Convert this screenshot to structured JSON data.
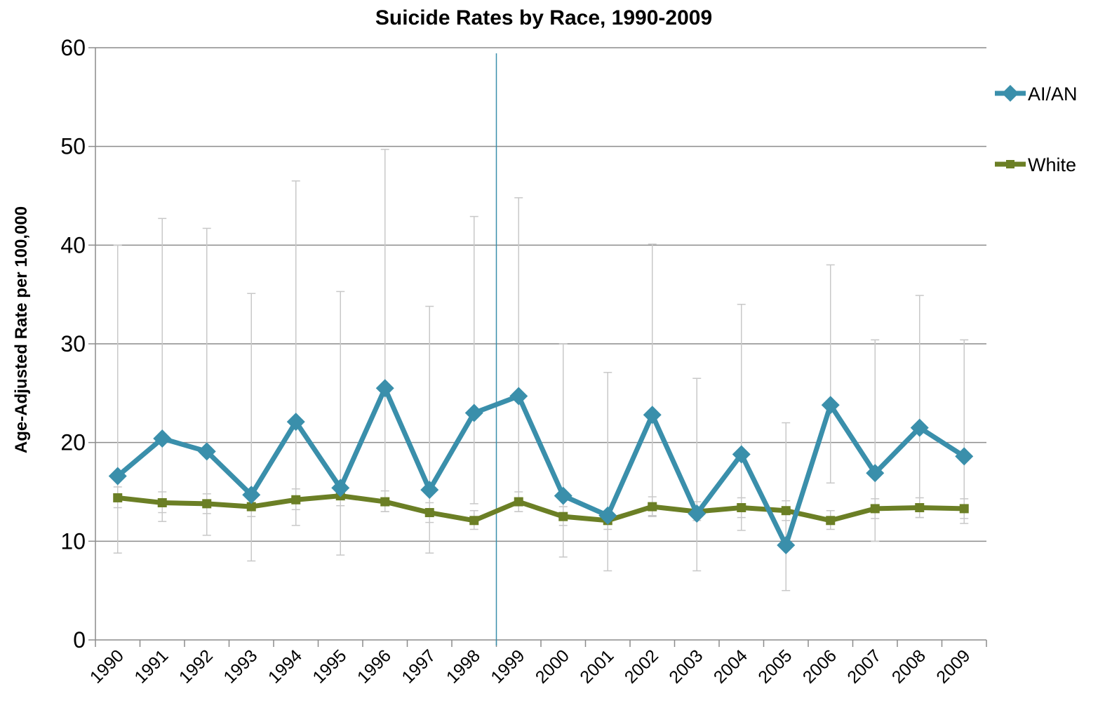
{
  "chart_data": {
    "type": "line",
    "title": "Suicide Rates by Race, 1990-2009",
    "ylabel": "Age-Adjusted Rate per 100,000",
    "xlabel": "",
    "ylim": [
      0,
      60
    ],
    "yticks": [
      0,
      10,
      20,
      30,
      40,
      50,
      60
    ],
    "grid": true,
    "legend_position": "right",
    "categories": [
      "1990",
      "1991",
      "1992",
      "1993",
      "1994",
      "1995",
      "1996",
      "1997",
      "1998",
      "1999",
      "2000",
      "2001",
      "2002",
      "2003",
      "2004",
      "2005",
      "2006",
      "2007",
      "2008",
      "2009"
    ],
    "reference_line_between": [
      "1998",
      "1999"
    ],
    "series": [
      {
        "name": "AI/AN",
        "color": "#3a8fab",
        "marker": "diamond",
        "values": [
          16.6,
          20.4,
          19.1,
          14.7,
          22.1,
          15.4,
          25.5,
          15.2,
          23.0,
          24.7,
          14.6,
          12.6,
          22.8,
          12.8,
          18.8,
          9.6,
          23.8,
          16.9,
          21.5,
          18.6
        ],
        "error_low": [
          8.8,
          12.0,
          10.6,
          8.0,
          11.6,
          8.6,
          13.0,
          8.8,
          13.8,
          13.0,
          8.4,
          7.0,
          12.6,
          7.0,
          11.1,
          5.0,
          15.9,
          10.0,
          12.4,
          11.8
        ],
        "error_high": [
          40.0,
          42.7,
          41.7,
          35.1,
          46.5,
          35.3,
          49.7,
          33.8,
          42.9,
          44.8,
          30.0,
          27.1,
          40.1,
          26.5,
          34.0,
          22.0,
          38.0,
          30.4,
          34.9,
          30.4
        ]
      },
      {
        "name": "White",
        "color": "#6b7f25",
        "marker": "square",
        "values": [
          14.4,
          13.9,
          13.8,
          13.5,
          14.2,
          14.6,
          14.0,
          12.9,
          12.1,
          14.0,
          12.5,
          12.1,
          13.5,
          13.0,
          13.4,
          13.1,
          12.1,
          13.3,
          13.4,
          13.3
        ],
        "error_low": [
          13.4,
          12.9,
          12.8,
          12.5,
          13.2,
          13.6,
          13.0,
          11.9,
          11.2,
          13.0,
          11.6,
          11.2,
          12.5,
          12.1,
          12.4,
          12.1,
          11.2,
          12.3,
          12.4,
          12.3
        ],
        "error_high": [
          15.5,
          15.0,
          14.8,
          14.5,
          15.3,
          15.6,
          15.1,
          13.9,
          13.1,
          15.0,
          13.5,
          13.1,
          14.5,
          14.0,
          14.4,
          14.1,
          13.1,
          14.3,
          14.4,
          14.3
        ]
      }
    ]
  }
}
